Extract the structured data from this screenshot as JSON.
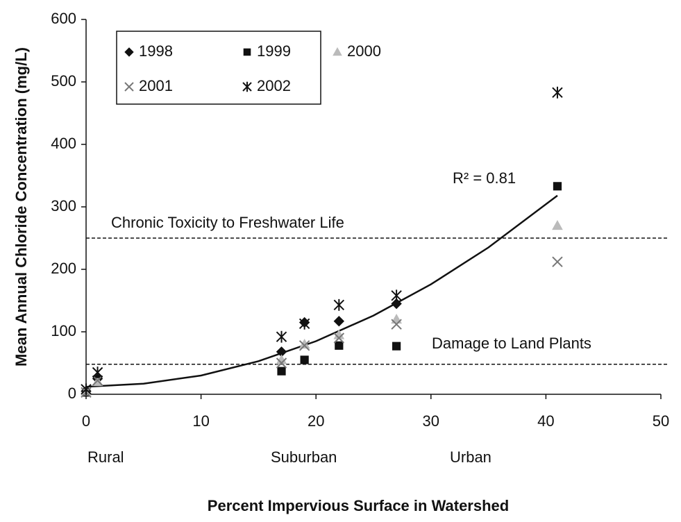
{
  "chart_data": {
    "type": "scatter",
    "x_label": "Percent Impervious Surface in Watershed",
    "y_label": "Mean Annual Chloride Concentration (mg/L)",
    "xlim": [
      0,
      50
    ],
    "xticks": [
      0,
      10,
      20,
      30,
      40,
      50
    ],
    "ylim": [
      0,
      600
    ],
    "yticks": [
      0,
      100,
      200,
      300,
      400,
      500,
      600
    ],
    "series": [
      {
        "name": "1998",
        "color": "#111111",
        "marker": "diamond",
        "x": [
          0,
          1,
          17,
          19,
          22,
          27
        ],
        "values": [
          5,
          25,
          68,
          115,
          117,
          145
        ]
      },
      {
        "name": "1999",
        "color": "#111111",
        "marker": "square",
        "x": [
          0,
          17,
          19,
          22,
          27,
          41
        ],
        "values": [
          3,
          37,
          55,
          78,
          77,
          333
        ]
      },
      {
        "name": "2000",
        "color": "#bbbbbb",
        "marker": "triangle",
        "x": [
          0,
          1,
          17,
          19,
          22,
          27,
          41
        ],
        "values": [
          5,
          20,
          55,
          80,
          95,
          120,
          270
        ]
      },
      {
        "name": "2001",
        "color": "#777777",
        "marker": "x",
        "x": [
          0,
          1,
          17,
          19,
          22,
          27,
          41
        ],
        "values": [
          3,
          22,
          50,
          78,
          90,
          112,
          212
        ]
      },
      {
        "name": "2002",
        "color": "#111111",
        "marker": "asterisk",
        "x": [
          0,
          1,
          17,
          19,
          22,
          27,
          41
        ],
        "values": [
          8,
          35,
          92,
          113,
          143,
          158,
          483
        ]
      }
    ],
    "trendline": {
      "x": [
        0,
        5,
        10,
        15,
        20,
        25,
        30,
        35,
        41
      ],
      "values": [
        12,
        17,
        30,
        53,
        85,
        126,
        176,
        235,
        318
      ],
      "annotation": "R² = 0.81"
    },
    "reference_lines": [
      {
        "value": 250,
        "label": "Chronic Toxicity to Freshwater Life"
      },
      {
        "value": 48,
        "label": "Damage to Land Plants"
      }
    ],
    "zone_labels": [
      "Rural",
      "Suburban",
      "Urban"
    ]
  }
}
